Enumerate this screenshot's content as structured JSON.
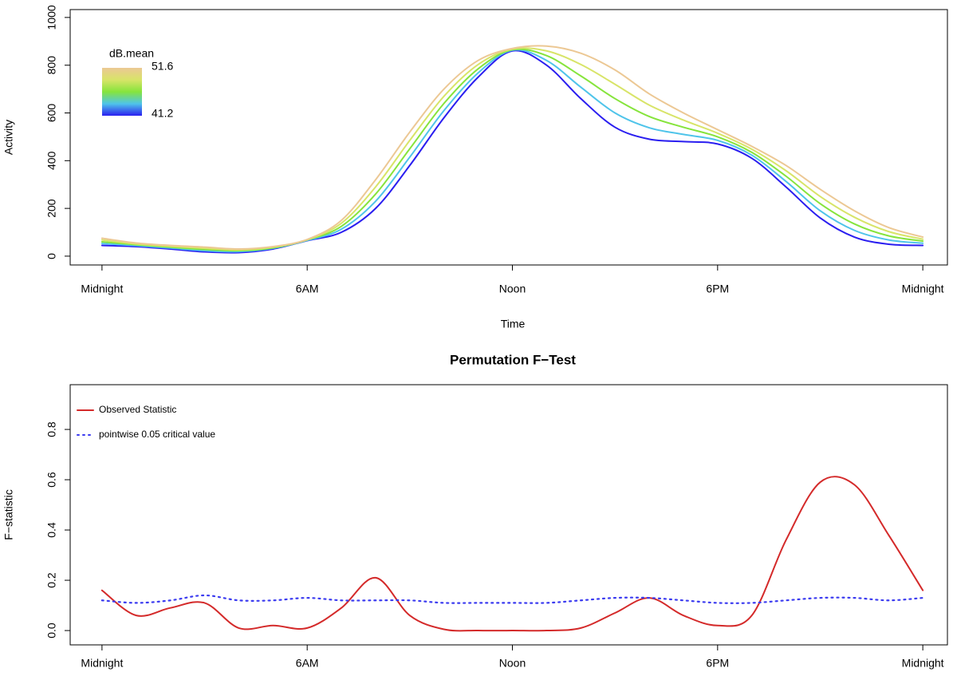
{
  "chart_data": [
    {
      "type": "line",
      "xlabel": "Time",
      "ylabel": "Activity",
      "x": [
        0,
        1,
        2,
        3,
        4,
        5,
        6,
        7,
        8,
        9,
        10,
        11,
        12,
        13,
        14,
        15,
        16,
        17,
        18,
        19,
        20,
        21,
        22,
        23,
        24
      ],
      "xlim": [
        -0.93,
        24.72
      ],
      "xticks": [
        {
          "value": 0,
          "label": "Midnight"
        },
        {
          "value": 6,
          "label": "6AM"
        },
        {
          "value": 12,
          "label": "Noon"
        },
        {
          "value": 18,
          "label": "6PM"
        },
        {
          "value": 24,
          "label": "Midnight"
        }
      ],
      "ylim": [
        -37,
        1033
      ],
      "yticks": [
        0,
        200,
        400,
        600,
        800,
        1000
      ],
      "colorbar": {
        "title": "dB.mean",
        "max": 51.6,
        "min": 41.2
      },
      "series": [
        {
          "color": "#2a1ef0",
          "values": [
            45,
            40,
            30,
            18,
            15,
            30,
            65,
            100,
            200,
            380,
            580,
            750,
            860,
            800,
            660,
            540,
            490,
            480,
            470,
            410,
            290,
            160,
            80,
            50,
            45
          ]
        },
        {
          "color": "#4fc4ea",
          "values": [
            53,
            44,
            34,
            23,
            19,
            33,
            66,
            113,
            230,
            415,
            610,
            768,
            863,
            820,
            708,
            600,
            538,
            510,
            485,
            423,
            313,
            190,
            108,
            68,
            54
          ]
        },
        {
          "color": "#86e43c",
          "values": [
            60,
            48,
            38,
            28,
            23,
            35,
            68,
            125,
            260,
            450,
            640,
            785,
            865,
            840,
            755,
            660,
            585,
            540,
            500,
            435,
            335,
            220,
            135,
            85,
            63
          ]
        },
        {
          "color": "#d8e468",
          "values": [
            68,
            51,
            41,
            33,
            26,
            38,
            69,
            138,
            290,
            485,
            670,
            803,
            868,
            860,
            803,
            720,
            633,
            570,
            515,
            448,
            358,
            250,
            163,
            103,
            71
          ]
        },
        {
          "color": "#ecc894",
          "values": [
            75,
            55,
            45,
            38,
            30,
            40,
            70,
            150,
            320,
            520,
            700,
            820,
            870,
            880,
            850,
            780,
            680,
            600,
            530,
            460,
            380,
            280,
            190,
            120,
            80
          ]
        }
      ]
    },
    {
      "type": "line",
      "title": "Permutation F−Test",
      "ylabel": "F−statistic",
      "x": [
        0,
        1,
        2,
        3,
        4,
        5,
        6,
        7,
        8,
        9,
        10,
        11,
        12,
        13,
        14,
        15,
        16,
        17,
        18,
        19,
        20,
        21,
        22,
        23,
        24
      ],
      "xlim": [
        -0.93,
        24.72
      ],
      "xticks": [
        {
          "value": 0,
          "label": "Midnight"
        },
        {
          "value": 6,
          "label": "6AM"
        },
        {
          "value": 12,
          "label": "Noon"
        },
        {
          "value": 18,
          "label": "6PM"
        },
        {
          "value": 24,
          "label": "Midnight"
        }
      ],
      "ylim": [
        -0.057,
        0.978
      ],
      "yticks": [
        {
          "value": 0,
          "label": "0.0"
        },
        0.2,
        0.4,
        0.6,
        0.8
      ],
      "legend": "topleft",
      "series": [
        {
          "name": "Observed Statistic",
          "color": "#d42a2a",
          "dash": false,
          "values": [
            0.16,
            0.06,
            0.09,
            0.11,
            0.01,
            0.02,
            0.01,
            0.09,
            0.21,
            0.06,
            0.005,
            0,
            0,
            0,
            0.01,
            0.07,
            0.13,
            0.06,
            0.02,
            0.06,
            0.36,
            0.59,
            0.58,
            0.38,
            0.16
          ]
        },
        {
          "name": "pointwise 0.05 critical value",
          "color": "#3b3bf0",
          "dash": true,
          "values": [
            0.12,
            0.11,
            0.12,
            0.14,
            0.12,
            0.12,
            0.13,
            0.12,
            0.12,
            0.12,
            0.11,
            0.11,
            0.11,
            0.11,
            0.12,
            0.13,
            0.13,
            0.12,
            0.11,
            0.11,
            0.12,
            0.13,
            0.13,
            0.12,
            0.13
          ]
        }
      ]
    }
  ]
}
